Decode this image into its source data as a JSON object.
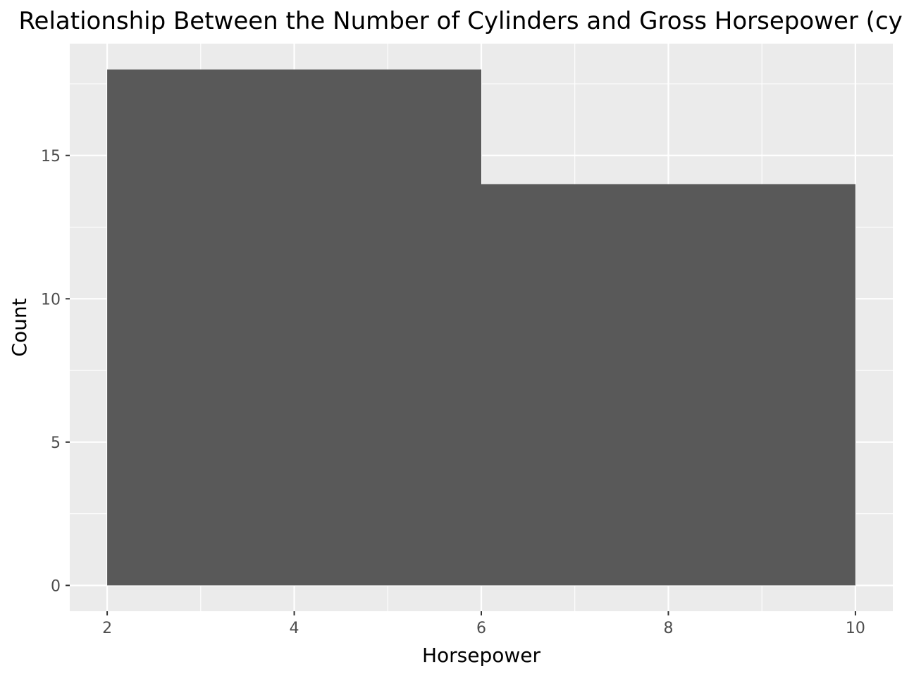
{
  "chart_data": {
    "type": "bar",
    "title": "Relationship Between the Number of Cylinders and Gross Horsepower (cyl as",
    "xlabel": "Horsepower",
    "ylabel": "Count",
    "bins": [
      {
        "x_start": 2,
        "x_end": 6,
        "count": 18
      },
      {
        "x_start": 6,
        "x_end": 10,
        "count": 14
      }
    ],
    "x_ticks": [
      2,
      4,
      6,
      8,
      10
    ],
    "y_ticks": [
      0,
      5,
      10,
      15
    ],
    "xlim": [
      1.6,
      10.4
    ],
    "ylim": [
      -0.9,
      18.9
    ],
    "grid": true,
    "legend": "none",
    "bar_color": "#595959",
    "panel_background": "#ebebeb",
    "grid_color": "#ffffff"
  }
}
